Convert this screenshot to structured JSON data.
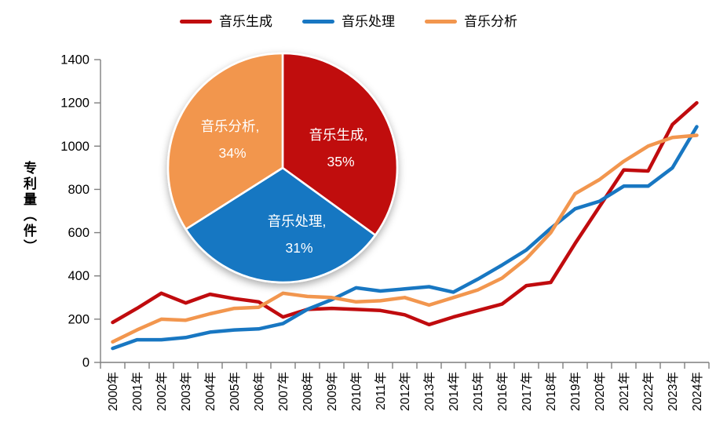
{
  "legend": {
    "items": [
      {
        "label": "音乐生成",
        "color": "#C00B0E"
      },
      {
        "label": "音乐处理",
        "color": "#1877C2"
      },
      {
        "label": "音乐分析",
        "color": "#F2964E"
      }
    ]
  },
  "chart_data": [
    {
      "type": "line",
      "title": "",
      "xlabel": "",
      "ylabel": "专利量（件）",
      "ylim": [
        0,
        1400
      ],
      "yticks": [
        0,
        200,
        400,
        600,
        800,
        1000,
        1200,
        1400
      ],
      "grid": false,
      "legend_position": "top",
      "categories": [
        "2000年",
        "2001年",
        "2002年",
        "2003年",
        "2004年",
        "2005年",
        "2006年",
        "2007年",
        "2008年",
        "2009年",
        "2010年",
        "2011年",
        "2012年",
        "2013年",
        "2014年",
        "2015年",
        "2016年",
        "2017年",
        "2018年",
        "2019年",
        "2020年",
        "2021年",
        "2022年",
        "2023年",
        "2024年"
      ],
      "series": [
        {
          "name": "音乐生成",
          "color": "#C00B0E",
          "values": [
            185,
            250,
            320,
            275,
            315,
            295,
            280,
            210,
            245,
            250,
            245,
            240,
            220,
            175,
            210,
            240,
            270,
            355,
            370,
            550,
            720,
            890,
            885,
            1100,
            1200
          ]
        },
        {
          "name": "音乐处理",
          "color": "#1877C2",
          "values": [
            65,
            105,
            105,
            115,
            140,
            150,
            155,
            180,
            245,
            290,
            345,
            330,
            340,
            350,
            325,
            385,
            450,
            520,
            620,
            710,
            745,
            815,
            815,
            900,
            1090
          ]
        },
        {
          "name": "音乐分析",
          "color": "#F2964E",
          "values": [
            95,
            150,
            200,
            195,
            225,
            250,
            255,
            320,
            305,
            300,
            280,
            285,
            300,
            265,
            300,
            335,
            390,
            480,
            600,
            780,
            845,
            930,
            1000,
            1040,
            1050
          ]
        }
      ]
    },
    {
      "type": "pie",
      "slices": [
        {
          "label": "音乐生成",
          "value": 35,
          "color": "#C00B0E"
        },
        {
          "label": "音乐处理",
          "value": 31,
          "color": "#1877C2"
        },
        {
          "label": "音乐分析",
          "value": 34,
          "color": "#F2964E"
        }
      ],
      "label_format": "name, pct%"
    }
  ]
}
